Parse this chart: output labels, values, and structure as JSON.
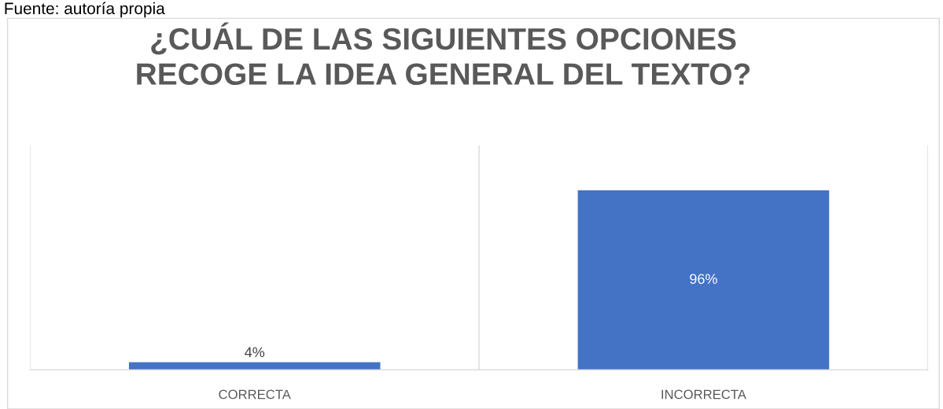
{
  "chart_data": {
    "type": "bar",
    "title": "¿CUÁL DE LAS SIGUIENTES OPCIONES\nRECOGE LA IDEA GENERAL DEL TEXTO?",
    "categories": [
      "CORRECTA",
      "INCORRECTA"
    ],
    "values": [
      4,
      96
    ],
    "color": "#4472c4",
    "value_labels": [
      "4%",
      "96%"
    ],
    "ylim": [
      0,
      120
    ],
    "grid": "x",
    "tick_labels": "x",
    "annotations": [
      "Fuente: autoría propia"
    ]
  }
}
